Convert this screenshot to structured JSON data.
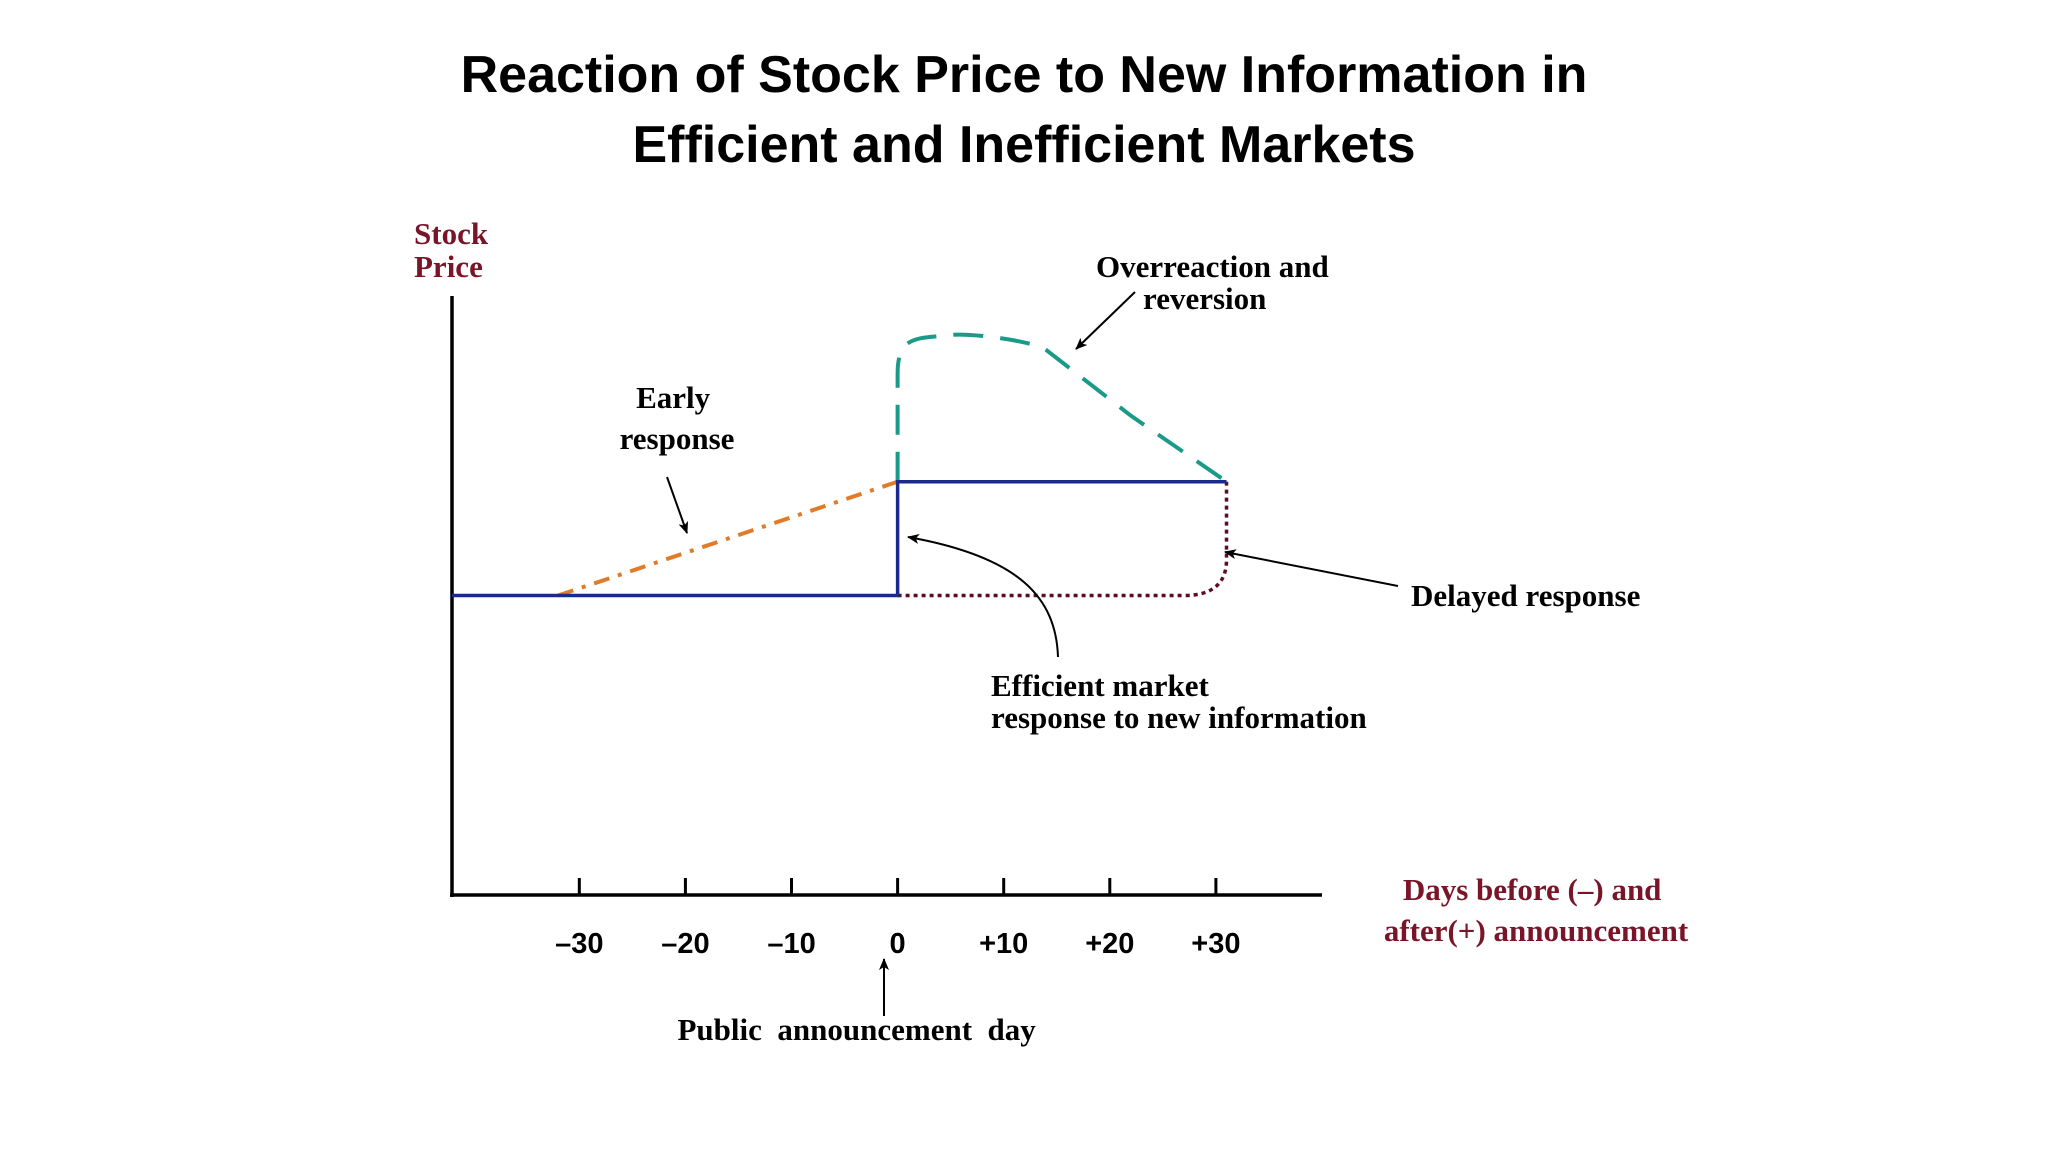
{
  "slide": {
    "title_line1": "Reaction of Stock Price to New Information in",
    "title_line2": "Efficient and Inefficient Markets"
  },
  "chart_data": {
    "type": "line",
    "title": "Reaction of Stock Price to New Information in Efficient and Inefficient Markets",
    "ylabel": [
      "Stock",
      "Price"
    ],
    "xlabel": [
      "Days before (–) and",
      "after(+) announcement"
    ],
    "x_ticks": [
      -30,
      -20,
      -10,
      0,
      10,
      20,
      30
    ],
    "x_tick_labels": [
      "–30",
      "–20",
      "–10",
      "0",
      "+10",
      "+20",
      "+30"
    ],
    "xlim": [
      -42,
      40
    ],
    "ylim": [
      0,
      100
    ],
    "series": [
      {
        "key": "efficient",
        "style": "solid",
        "color": "#1a2a8c",
        "points": [
          [
            -42,
            50
          ],
          [
            0,
            50
          ],
          [
            0,
            69
          ],
          [
            31,
            69
          ]
        ]
      },
      {
        "key": "early",
        "style": "dashdot",
        "color": "#e07b2a",
        "points": [
          [
            -32,
            50
          ],
          [
            0,
            69
          ]
        ]
      },
      {
        "key": "overreaction",
        "style": "dashed",
        "color": "#1a9a88",
        "points": [
          [
            0,
            69
          ],
          [
            0,
            87
          ],
          [
            1,
            91
          ],
          [
            5,
            93.5
          ],
          [
            10,
            93.2
          ],
          [
            14,
            91
          ],
          [
            22,
            80
          ],
          [
            31,
            69
          ]
        ]
      },
      {
        "key": "delayed",
        "style": "dotted",
        "color": "#5a1020",
        "points": [
          [
            0,
            50
          ],
          [
            27,
            50
          ],
          [
            30,
            51.5
          ],
          [
            31,
            56
          ],
          [
            31,
            69
          ]
        ]
      }
    ],
    "annotations": [
      {
        "key": "early",
        "lines": [
          "Early",
          "response"
        ]
      },
      {
        "key": "overreaction",
        "lines": [
          "Overreaction and",
          "reversion"
        ]
      },
      {
        "key": "delayed",
        "lines": [
          "Delayed response"
        ]
      },
      {
        "key": "efficient",
        "lines": [
          "Efficient market",
          "response to new information"
        ]
      },
      {
        "key": "announcement",
        "lines": [
          "Public  announcement  day"
        ]
      }
    ],
    "colors": {
      "axis_label": "#7a1428",
      "axis": "#000000",
      "text": "#000000"
    }
  }
}
